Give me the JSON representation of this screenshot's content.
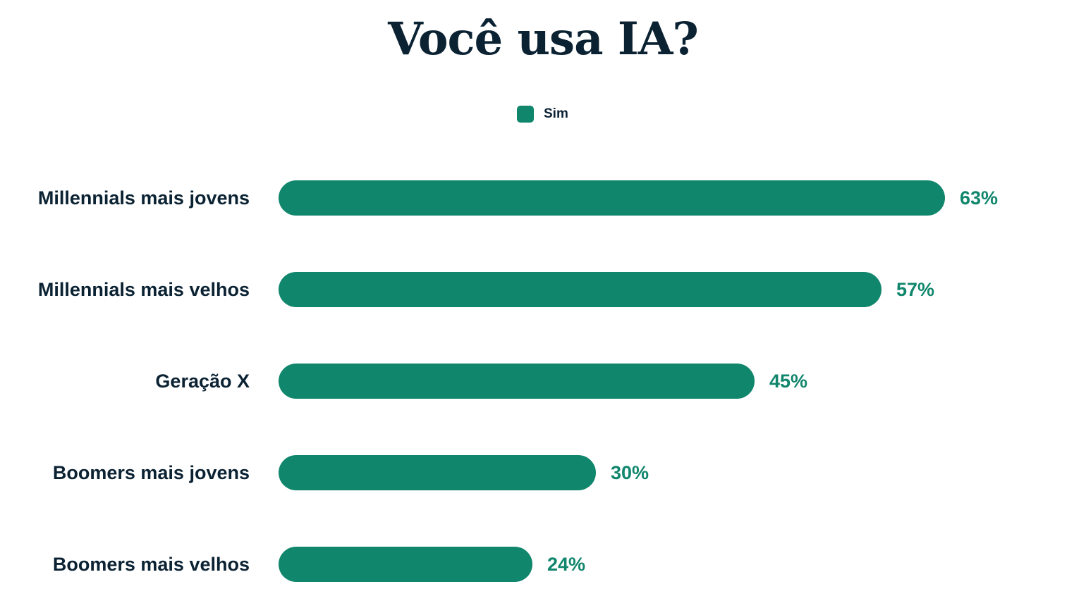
{
  "chart_data": {
    "type": "bar",
    "orientation": "horizontal",
    "title": "Você usa IA?",
    "categories": [
      "Millennials mais jovens",
      "Millennials mais velhos",
      "Geração X",
      "Boomers mais jovens",
      "Boomers mais velhos"
    ],
    "series": [
      {
        "name": "Sim",
        "values": [
          63,
          57,
          45,
          30,
          24
        ],
        "color": "#10866c"
      }
    ],
    "value_format": "percent",
    "legend": "top-center",
    "grid": false,
    "xlim": [
      0,
      100
    ]
  },
  "colors": {
    "text": "#0b2233",
    "bar": "#10866c"
  }
}
